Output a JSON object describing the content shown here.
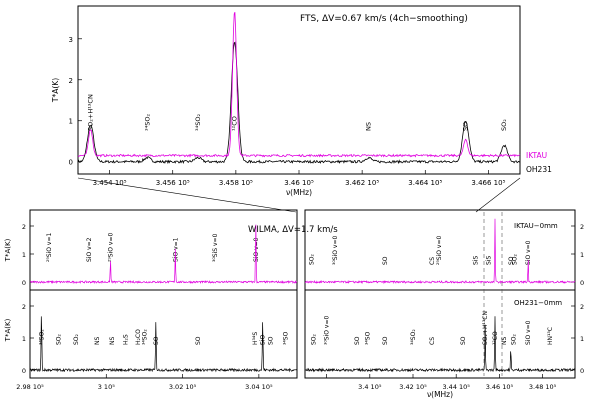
{
  "colors": {
    "iktau": "#e000e0",
    "oh231": "#000000",
    "axis": "#000000",
    "dash": "#555555"
  },
  "top_panel": {
    "annotation": "FTS, ΔV=0.67 km/s (4ch−smoothing)",
    "legend": [
      "IKTAU",
      "OH231"
    ],
    "xlabel": "ν(MHz)",
    "ylabel": "T*A(K)",
    "xlim": [
      345300,
      346700
    ],
    "ylim": [
      -0.3,
      3.8
    ],
    "xticks": [
      345400,
      345600,
      345800,
      346000,
      346200,
      346400,
      346600
    ],
    "xtick_labels": [
      "3.454 10⁵",
      "3.456 10⁵",
      "3.458 10⁵",
      "3.46 10⁵",
      "3.462 10⁵",
      "3.464 10⁵",
      "3.466 10⁵"
    ],
    "yticks": [
      0,
      1,
      2,
      3
    ],
    "lines": [
      {
        "label": "SO₂+H¹³CN",
        "freq": 345340
      },
      {
        "label": "³⁴SO₂",
        "freq": 345520
      },
      {
        "label": "³⁴SO₂",
        "freq": 345680
      },
      {
        "label": "¹²CO",
        "freq": 345796
      },
      {
        "label": "NS",
        "freq": 346220
      },
      {
        "label": "SO",
        "freq": 346528
      },
      {
        "label": "SO₂",
        "freq": 346650
      }
    ]
  },
  "bottom_left": {
    "annotation": "WILMA, ΔV=1.7 km/s",
    "xlabel": "",
    "xlim": [
      298000,
      305000
    ],
    "xticks": [
      298000,
      300000,
      302000,
      304000
    ],
    "xtick_labels": [
      "2.98 10⁵",
      "3 10⁵",
      "3.02 10⁵",
      "3.04 10⁵"
    ],
    "ylabel": "T*A(K)",
    "ik_lines": [
      {
        "label": "²⁹SiO v=1",
        "freq": 298500
      },
      {
        "label": "SiO v=2",
        "freq": 299550
      },
      {
        "label": "²⁹SiO v=0",
        "freq": 300110
      },
      {
        "label": "SiO v=1",
        "freq": 301810
      },
      {
        "label": "³⁰SiS v=0",
        "freq": 302850
      },
      {
        "label": "SiO v=0",
        "freq": 303920
      }
    ],
    "oh_lines": [
      {
        "label": "³⁴SO₂",
        "freq": 298300
      },
      {
        "label": "SO₂",
        "freq": 298750
      },
      {
        "label": "SO₂",
        "freq": 299200
      },
      {
        "label": "NS",
        "freq": 299750
      },
      {
        "label": "NS",
        "freq": 300150
      },
      {
        "label": "H₂S",
        "freq": 300510
      },
      {
        "label": "H₂CO",
        "freq": 300830
      },
      {
        "label": "³⁴SO₂",
        "freq": 301000
      },
      {
        "label": "SO",
        "freq": 301300
      },
      {
        "label": "SO",
        "freq": 302400
      },
      {
        "label": "H³⁴S",
        "freq": 303900
      },
      {
        "label": "SiO",
        "freq": 304100
      },
      {
        "label": "SO",
        "freq": 304300
      },
      {
        "label": "³⁴SO",
        "freq": 304700
      }
    ]
  },
  "bottom_right": {
    "legend_ik": "IKTAU−0mm",
    "legend_oh": "OH231−0mm",
    "xlabel": "ν(MHz)",
    "xlim": [
      337000,
      349500
    ],
    "xticks": [
      338000,
      340000,
      342000,
      344000,
      346000,
      348000
    ],
    "xtick_labels": [
      "",
      "3.4 10⁵",
      "3.42 10⁵",
      "3.44 10⁵",
      "3.46 10⁵",
      "3.48 10⁵"
    ],
    "yticks_ik": [
      0,
      1,
      2
    ],
    "yticks_oh": [
      0,
      1,
      2
    ],
    "ik_lines": [
      {
        "label": "SO₂",
        "freq": 337300
      },
      {
        "label": "³⁰SiO v=0",
        "freq": 338400
      },
      {
        "label": "SO",
        "freq": 340700
      },
      {
        "label": "CS",
        "freq": 342880
      },
      {
        "label": "²⁹SiO v=0",
        "freq": 343200
      },
      {
        "label": "SiS",
        "freq": 344900
      },
      {
        "label": "SiS",
        "freq": 345500
      },
      {
        "label": "SO",
        "freq": 346528
      },
      {
        "label": "SO₂",
        "freq": 346700
      },
      {
        "label": "SiO v=0",
        "freq": 347330
      }
    ],
    "oh_lines": [
      {
        "label": "SO₂",
        "freq": 337400
      },
      {
        "label": "³⁰SiO v=0",
        "freq": 338000
      },
      {
        "label": "SO",
        "freq": 339400
      },
      {
        "label": "³⁴SO",
        "freq": 339900
      },
      {
        "label": "SO",
        "freq": 340710
      },
      {
        "label": "³⁴SO₂",
        "freq": 342000
      },
      {
        "label": "CS",
        "freq": 342880
      },
      {
        "label": "SO",
        "freq": 344310
      },
      {
        "label": "SO₂+H¹³CN",
        "freq": 345340
      },
      {
        "label": "¹²CO",
        "freq": 345796
      },
      {
        "label": "NS",
        "freq": 346220
      },
      {
        "label": "SO₂",
        "freq": 346650
      },
      {
        "label": "SiO v=0",
        "freq": 347330
      },
      {
        "label": "HN¹³C",
        "freq": 348340
      }
    ]
  },
  "chart_data": [
    {
      "type": "line",
      "title": "FTS, ΔV=0.67 km/s (4ch−smoothing)",
      "xlabel": "ν(MHz)",
      "ylabel": "T*A(K)",
      "xlim": [
        345300,
        346700
      ],
      "ylim": [
        -0.3,
        3.8
      ],
      "series": [
        {
          "name": "IKTAU",
          "baseline": 0.15,
          "peaks": [
            {
              "x": 345340,
              "y": 0.8
            },
            {
              "x": 345796,
              "y": 3.7
            },
            {
              "x": 346528,
              "y": 0.55
            }
          ]
        },
        {
          "name": "OH231",
          "baseline": 0.0,
          "peaks": [
            {
              "x": 345340,
              "y": 0.9
            },
            {
              "x": 345520,
              "y": 0.1
            },
            {
              "x": 345680,
              "y": 0.1
            },
            {
              "x": 345796,
              "y": 2.95
            },
            {
              "x": 346220,
              "y": 0.1
            },
            {
              "x": 346528,
              "y": 1.0
            },
            {
              "x": 346650,
              "y": 0.4
            }
          ]
        }
      ]
    },
    {
      "type": "line",
      "title": "WILMA, ΔV=1.7 km/s",
      "xlim": [
        298000,
        305000
      ],
      "series": [
        {
          "name": "IKTAU−0mm",
          "peaks": [
            {
              "x": 300110,
              "y": 0.8
            },
            {
              "x": 301810,
              "y": 1.2
            },
            {
              "x": 303920,
              "y": 2.2
            }
          ]
        },
        {
          "name": "OH231−0mm",
          "peaks": [
            {
              "x": 298300,
              "y": 1.8
            },
            {
              "x": 301300,
              "y": 1.5
            },
            {
              "x": 304100,
              "y": 1.5
            }
          ]
        }
      ]
    },
    {
      "type": "line",
      "xlabel": "ν(MHz)",
      "xlim": [
        337000,
        349500
      ],
      "series": [
        {
          "name": "IKTAU−0mm",
          "peaks": [
            {
              "x": 345796,
              "y": 2.3
            },
            {
              "x": 347330,
              "y": 0.9
            }
          ]
        },
        {
          "name": "OH231−0mm",
          "peaks": [
            {
              "x": 345340,
              "y": 1.4
            },
            {
              "x": 345796,
              "y": 1.7
            },
            {
              "x": 346528,
              "y": 0.7
            }
          ]
        }
      ]
    }
  ]
}
